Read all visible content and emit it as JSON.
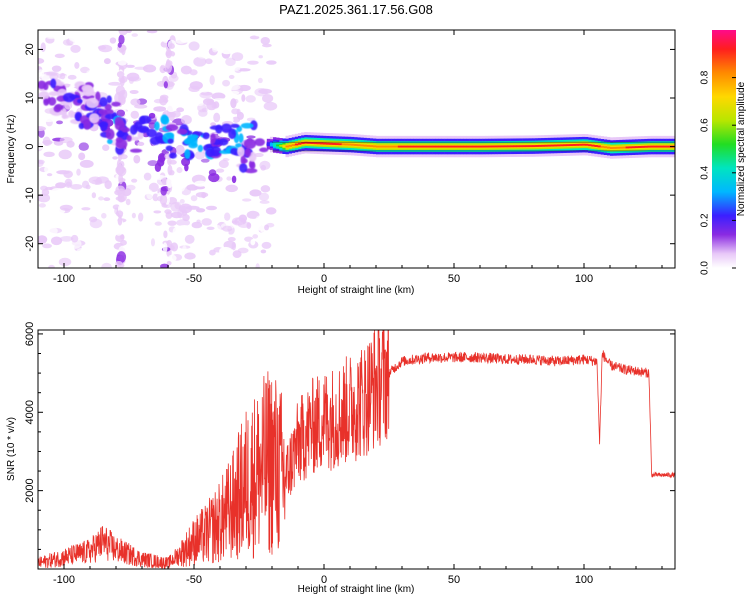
{
  "title": "PAZ1.2025.361.17.56.G08",
  "chart_data": [
    {
      "type": "heatmap",
      "xlabel": "Height of straight line (km)",
      "ylabel": "Frequency (Hz)",
      "xlim": [
        -110,
        135
      ],
      "ylim": [
        -25,
        24
      ],
      "xticks": [
        -100,
        -50,
        0,
        50,
        100
      ],
      "yticks": [
        -20,
        -10,
        0,
        10,
        20
      ],
      "ridge": [
        {
          "x": -22,
          "y": 0.5,
          "amp": 0.3
        },
        {
          "x": -15,
          "y": 0.0,
          "amp": 0.9
        },
        {
          "x": -8,
          "y": 0.8,
          "amp": 0.95
        },
        {
          "x": 0,
          "y": 0.6,
          "amp": 0.95
        },
        {
          "x": 10,
          "y": 0.4,
          "amp": 0.9
        },
        {
          "x": 20,
          "y": 0.0,
          "amp": 0.9
        },
        {
          "x": 40,
          "y": 0.0,
          "amp": 0.95
        },
        {
          "x": 60,
          "y": 0.0,
          "amp": 0.95
        },
        {
          "x": 80,
          "y": 0.1,
          "amp": 0.95
        },
        {
          "x": 100,
          "y": 0.4,
          "amp": 0.95
        },
        {
          "x": 110,
          "y": -0.3,
          "amp": 0.9
        },
        {
          "x": 125,
          "y": 0.0,
          "amp": 0.95
        },
        {
          "x": 135,
          "y": 0.0,
          "amp": 0.95
        }
      ],
      "blobs": [
        {
          "x": -105,
          "y": 12,
          "amp": 0.2
        },
        {
          "x": -100,
          "y": 8,
          "amp": 0.15
        },
        {
          "x": -95,
          "y": 10,
          "amp": 0.2
        },
        {
          "x": -90,
          "y": 6,
          "amp": 0.25
        },
        {
          "x": -85,
          "y": 8,
          "amp": 0.2
        },
        {
          "x": -80,
          "y": 4,
          "amp": 0.3
        },
        {
          "x": -75,
          "y": 2,
          "amp": 0.2
        },
        {
          "x": -65,
          "y": 3,
          "amp": 0.35
        },
        {
          "x": -55,
          "y": 1,
          "amp": 0.3
        },
        {
          "x": -48,
          "y": 0,
          "amp": 0.35
        },
        {
          "x": -40,
          "y": 1,
          "amp": 0.3
        },
        {
          "x": -32,
          "y": 1.5,
          "amp": 0.35
        },
        {
          "x": -28,
          "y": -2,
          "amp": 0.2
        }
      ],
      "colorbar": {
        "label": "Normalized spectral amplitude",
        "range": [
          0,
          1
        ],
        "ticks": [
          0.0,
          0.2,
          0.4,
          0.6,
          0.8
        ]
      }
    },
    {
      "type": "line",
      "xlabel": "Height of straight line (km)",
      "ylabel": "SNR (10 * v/v)",
      "xlim": [
        -110,
        135
      ],
      "ylim": [
        0,
        6100
      ],
      "xticks": [
        -100,
        -50,
        0,
        50,
        100
      ],
      "yticks": [
        2000,
        4000,
        6000
      ],
      "color": "#e8312a",
      "noise_level": 0.25,
      "series": [
        {
          "name": "SNR",
          "x": [
            -110,
            -100,
            -90,
            -85,
            -80,
            -70,
            -60,
            -55,
            -50,
            -45,
            -40,
            -35,
            -30,
            -25,
            -20,
            -15,
            -10,
            -5,
            0,
            5,
            10,
            15,
            20,
            25,
            30,
            40,
            50,
            60,
            70,
            80,
            90,
            100,
            105,
            106,
            107,
            110,
            115,
            120,
            125,
            126,
            127,
            130,
            135
          ],
          "y": [
            150,
            300,
            450,
            700,
            500,
            250,
            150,
            400,
            700,
            900,
            1200,
            1600,
            2200,
            2500,
            2800,
            2300,
            3200,
            3600,
            3800,
            3900,
            4100,
            4300,
            4700,
            5000,
            5300,
            5400,
            5400,
            5400,
            5350,
            5350,
            5300,
            5350,
            5300,
            3200,
            5500,
            5200,
            5100,
            5050,
            5000,
            2400,
            2400,
            2400,
            2400
          ]
        }
      ]
    }
  ]
}
